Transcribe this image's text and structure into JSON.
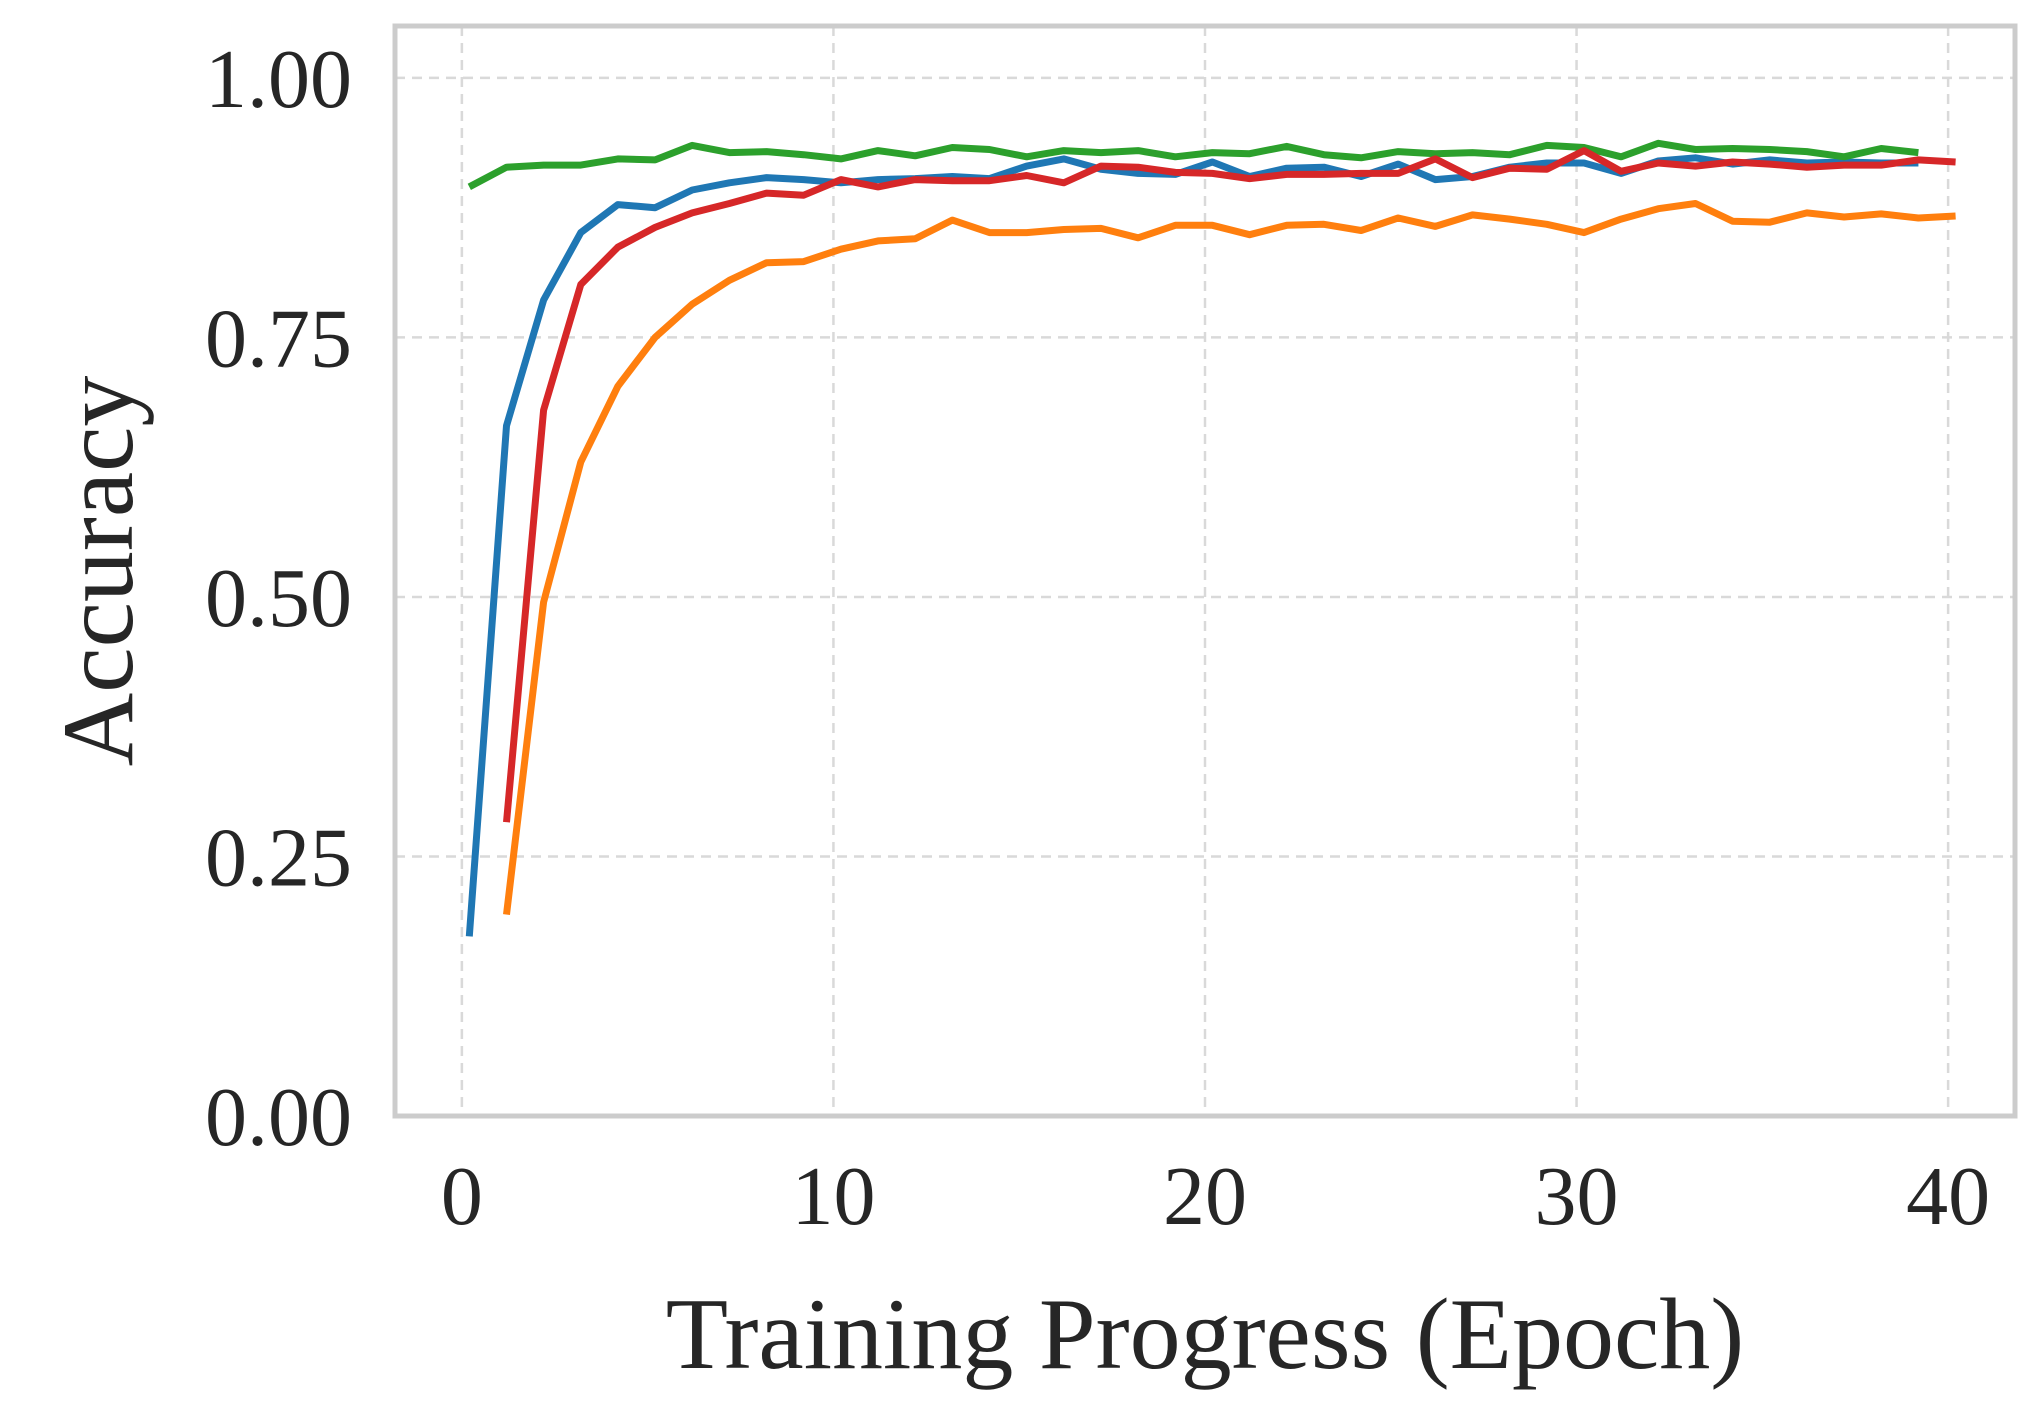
{
  "chart_data": {
    "type": "line",
    "title": "",
    "xlabel": "Training Progress (Epoch)",
    "ylabel": "Accuracy",
    "xlim": [
      -1.8,
      41.8
    ],
    "ylim": [
      0,
      1.05
    ],
    "xticks": [
      0,
      10,
      20,
      30,
      40
    ],
    "xtick_labels": [
      "0",
      "10",
      "20",
      "30",
      "40"
    ],
    "yticks": [
      0,
      0.25,
      0.5,
      0.75,
      1.0
    ],
    "ytick_labels": [
      "0.00",
      "0.25",
      "0.50",
      "0.75",
      "1.00"
    ],
    "grid": true,
    "legend": "none",
    "series": [
      {
        "name": "blue",
        "color": "#1f77b4",
        "x": [
          0.2,
          1.2,
          2.2,
          3.2,
          4.2,
          5.2,
          6.2,
          7.2,
          8.2,
          9.2,
          10.2,
          11.2,
          12.2,
          13.2,
          14.2,
          15.2,
          16.2,
          17.2,
          18.2,
          19.2,
          20.2,
          21.2,
          22.2,
          23.2,
          24.2,
          25.2,
          26.2,
          27.2,
          28.2,
          29.2,
          30.2,
          31.2,
          32.2,
          33.2,
          34.2,
          35.2,
          36.2,
          37.2,
          38.2,
          39.2
        ],
        "values": [
          0.173,
          0.665,
          0.786,
          0.851,
          0.878,
          0.875,
          0.892,
          0.899,
          0.904,
          0.902,
          0.899,
          0.902,
          0.903,
          0.905,
          0.903,
          0.915,
          0.922,
          0.912,
          0.908,
          0.907,
          0.919,
          0.905,
          0.913,
          0.914,
          0.905,
          0.917,
          0.902,
          0.905,
          0.914,
          0.918,
          0.918,
          0.908,
          0.92,
          0.923,
          0.917,
          0.921,
          0.918,
          0.919,
          0.918,
          0.918
        ]
      },
      {
        "name": "orange",
        "color": "#ff7f0e",
        "x": [
          1.2,
          2.2,
          3.2,
          4.2,
          5.2,
          6.2,
          7.2,
          8.2,
          9.2,
          10.2,
          11.2,
          12.2,
          13.2,
          14.2,
          15.2,
          16.2,
          17.2,
          18.2,
          19.2,
          20.2,
          21.2,
          22.2,
          23.2,
          24.2,
          25.2,
          26.2,
          27.2,
          28.2,
          29.2,
          30.2,
          31.2,
          32.2,
          33.2,
          34.2,
          35.2,
          36.2,
          37.2,
          38.2,
          39.2,
          40.2
        ],
        "values": [
          0.194,
          0.495,
          0.63,
          0.703,
          0.75,
          0.782,
          0.805,
          0.822,
          0.823,
          0.835,
          0.843,
          0.845,
          0.863,
          0.851,
          0.851,
          0.854,
          0.855,
          0.846,
          0.858,
          0.858,
          0.849,
          0.858,
          0.859,
          0.853,
          0.865,
          0.857,
          0.868,
          0.864,
          0.859,
          0.851,
          0.864,
          0.874,
          0.879,
          0.862,
          0.861,
          0.87,
          0.866,
          0.869,
          0.865,
          0.867
        ]
      },
      {
        "name": "green",
        "color": "#2ca02c",
        "x": [
          0.2,
          1.2,
          2.2,
          3.2,
          4.2,
          5.2,
          6.2,
          7.2,
          8.2,
          9.2,
          10.2,
          11.2,
          12.2,
          13.2,
          14.2,
          15.2,
          16.2,
          17.2,
          18.2,
          19.2,
          20.2,
          21.2,
          22.2,
          23.2,
          24.2,
          25.2,
          26.2,
          27.2,
          28.2,
          29.2,
          30.2,
          31.2,
          32.2,
          33.2,
          34.2,
          35.2,
          36.2,
          37.2,
          38.2,
          39.2
        ],
        "values": [
          0.895,
          0.914,
          0.916,
          0.916,
          0.922,
          0.921,
          0.935,
          0.928,
          0.929,
          0.926,
          0.922,
          0.93,
          0.925,
          0.933,
          0.931,
          0.924,
          0.93,
          0.928,
          0.93,
          0.924,
          0.928,
          0.927,
          0.934,
          0.926,
          0.923,
          0.929,
          0.927,
          0.928,
          0.926,
          0.935,
          0.933,
          0.924,
          0.937,
          0.931,
          0.932,
          0.931,
          0.929,
          0.924,
          0.932,
          0.928
        ]
      },
      {
        "name": "red",
        "color": "#d62728",
        "x": [
          1.2,
          2.2,
          3.2,
          4.2,
          5.2,
          6.2,
          7.2,
          8.2,
          9.2,
          10.2,
          11.2,
          12.2,
          13.2,
          14.2,
          15.2,
          16.2,
          17.2,
          18.2,
          19.2,
          20.2,
          21.2,
          22.2,
          23.2,
          24.2,
          25.2,
          26.2,
          27.2,
          28.2,
          29.2,
          30.2,
          31.2,
          32.2,
          33.2,
          34.2,
          35.2,
          36.2,
          37.2,
          38.2,
          39.2,
          40.2
        ],
        "values": [
          0.283,
          0.68,
          0.801,
          0.837,
          0.856,
          0.87,
          0.879,
          0.889,
          0.887,
          0.902,
          0.895,
          0.902,
          0.901,
          0.901,
          0.906,
          0.899,
          0.915,
          0.914,
          0.909,
          0.908,
          0.903,
          0.907,
          0.907,
          0.908,
          0.908,
          0.922,
          0.904,
          0.913,
          0.912,
          0.93,
          0.91,
          0.918,
          0.915,
          0.919,
          0.917,
          0.914,
          0.916,
          0.916,
          0.921,
          0.919
        ]
      }
    ]
  }
}
